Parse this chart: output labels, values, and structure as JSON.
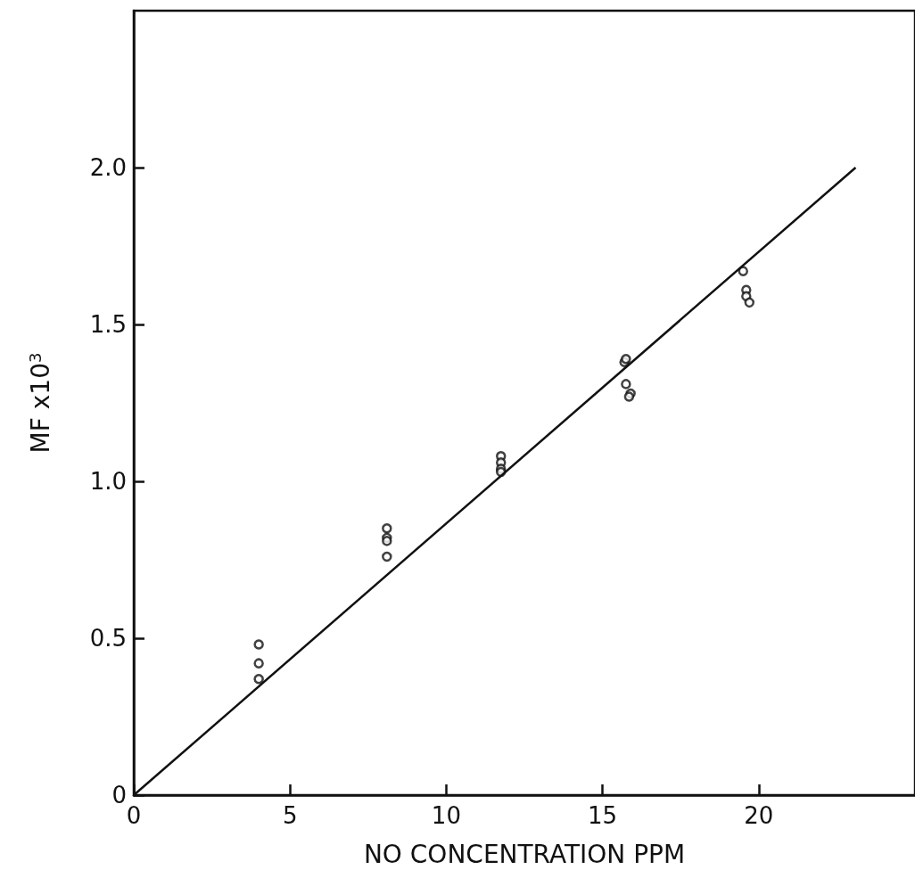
{
  "chart_data": {
    "type": "scatter",
    "xlabel": "NO CONCENTRATION PPM",
    "ylabel": "MF x10$^{3}$",
    "xlim": [
      0,
      25
    ],
    "ylim": [
      0,
      2.5
    ],
    "xticks": [
      0,
      5,
      10,
      15,
      20
    ],
    "yticks": [
      0,
      0.5,
      {
        "value": 1,
        "label": "1.0"
      },
      1.5,
      {
        "value": 2,
        "label": "2.0"
      }
    ],
    "grid": false,
    "marker": "circle",
    "series": [
      {
        "color": "#111111",
        "x": [
          4.0,
          4.0,
          4.0,
          8.1,
          8.1,
          8.1,
          8.1,
          11.75,
          11.75,
          11.75,
          11.75,
          15.7,
          15.75,
          15.75,
          15.9,
          15.85,
          19.5,
          19.6,
          19.6,
          19.7
        ],
        "values": [
          0.48,
          0.42,
          0.37,
          0.85,
          0.82,
          0.81,
          0.76,
          1.08,
          1.06,
          1.04,
          1.03,
          1.38,
          1.39,
          1.31,
          1.28,
          1.27,
          1.67,
          1.61,
          1.59,
          1.57
        ]
      },
      {
        "type": "line",
        "color": "#111111",
        "marker": "none",
        "x": [
          0,
          23.1
        ],
        "values": [
          0,
          2.0
        ]
      }
    ]
  }
}
